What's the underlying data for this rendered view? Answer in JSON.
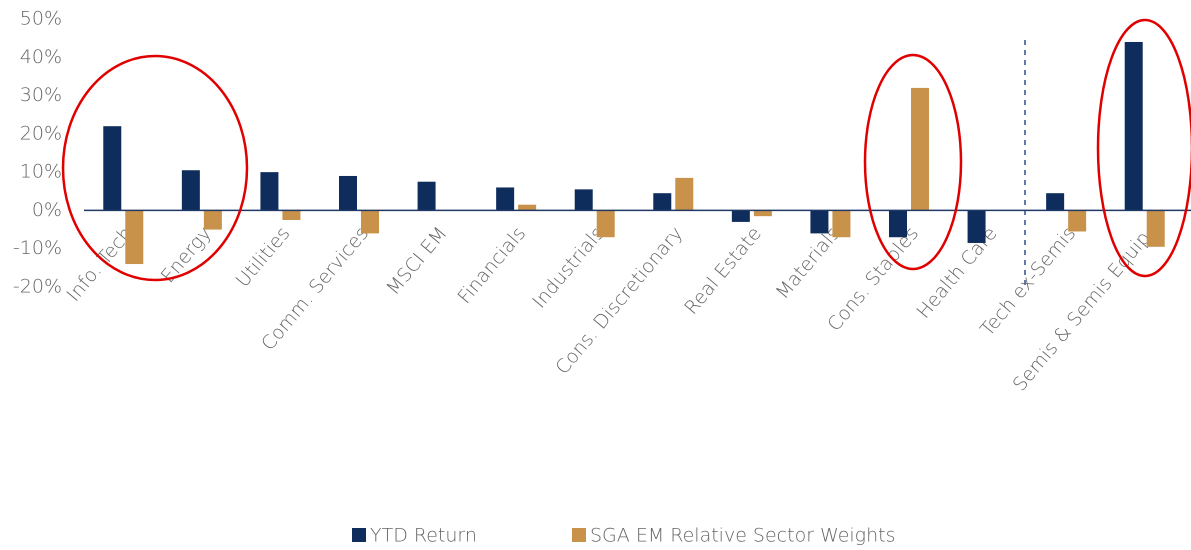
{
  "chart_data": {
    "type": "bar",
    "categories": [
      "Info. Tech",
      "Energy",
      "Utilities",
      "Comm. Services",
      "MSCI EM",
      "Financials",
      "Industrials",
      "Cons. Discretionary",
      "Real Estate",
      "Materials",
      "Cons. Staples",
      "Health Care",
      "Tech ex-Semis",
      "Semis & Semis Equip."
    ],
    "series": [
      {
        "name": "YTD Return",
        "color": "#0f2d5c",
        "values": [
          22,
          10.5,
          10,
          9,
          7.5,
          6,
          5.5,
          4.5,
          -3,
          -6,
          -7,
          -8.5,
          4.5,
          44
        ]
      },
      {
        "name": "SGA EM Relative Sector Weights",
        "color": "#c9924b",
        "values": [
          -14,
          -5,
          -2.5,
          -6,
          null,
          1.5,
          -7,
          8.5,
          -1.5,
          -7,
          32,
          null,
          -5.5,
          -9.5
        ]
      }
    ],
    "ylim": [
      -20,
      50
    ],
    "yticks": [
      {
        "value": -20,
        "label": "-20%"
      },
      {
        "value": -10,
        "label": "-10%"
      },
      {
        "value": 0,
        "label": "0%"
      },
      {
        "value": 10,
        "label": "10%"
      },
      {
        "value": 20,
        "label": "20%"
      },
      {
        "value": 30,
        "label": "30%"
      },
      {
        "value": 40,
        "label": "40%"
      },
      {
        "value": 50,
        "label": "50%"
      }
    ],
    "grid": false,
    "legend": "bottom"
  }
}
